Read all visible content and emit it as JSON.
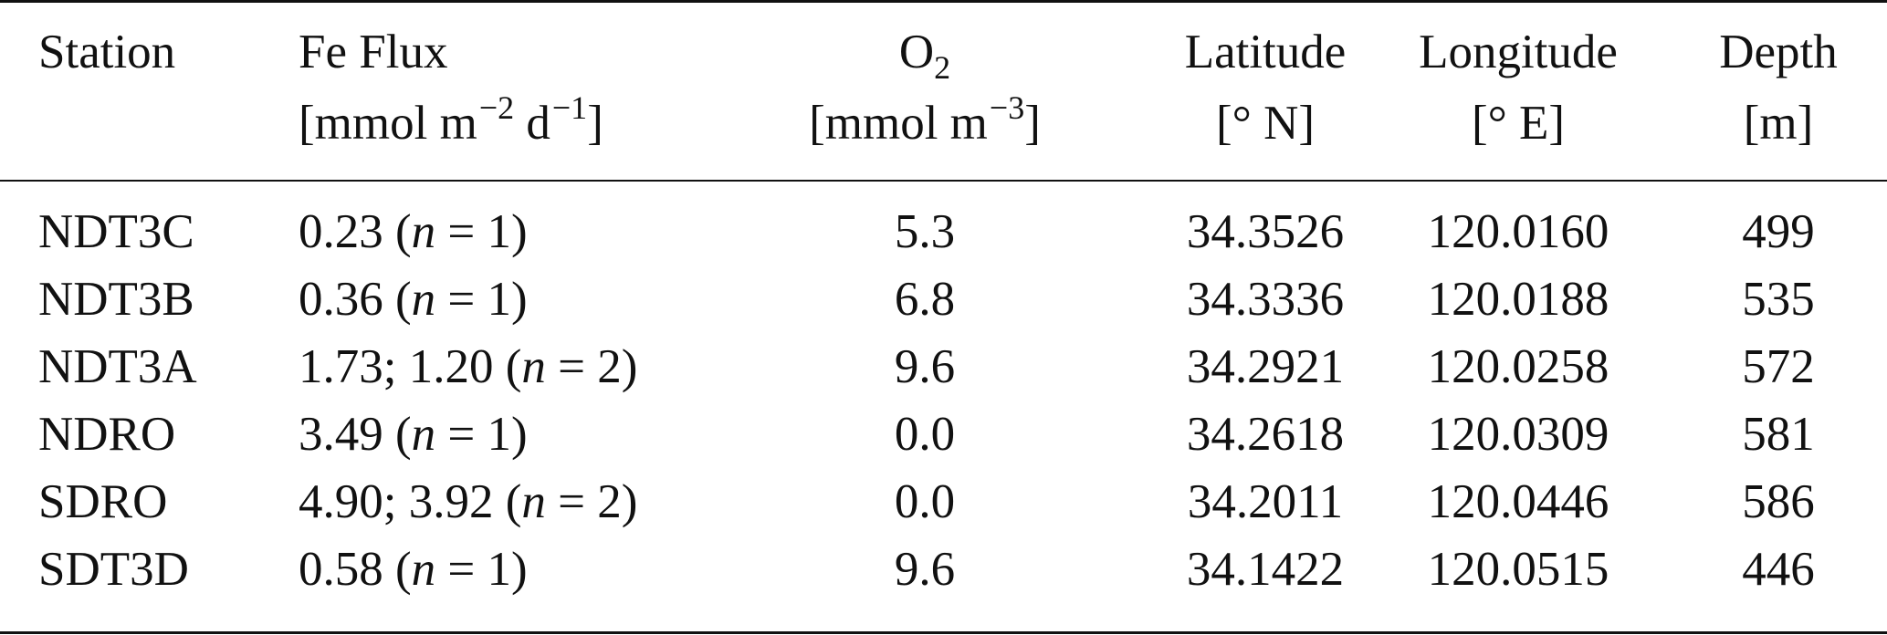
{
  "table": {
    "headers": {
      "station": "Station",
      "fe_flux": {
        "line1": "Fe Flux",
        "unit_prefix": "[mmol m",
        "exp_m": "−2",
        "unit_mid": " d",
        "exp_d": "−1",
        "unit_suffix": "]"
      },
      "o2": {
        "symbol": "O",
        "subscript": "2",
        "unit_prefix": "[mmol m",
        "exp_m": "−3",
        "unit_suffix": "]"
      },
      "latitude": {
        "line1": "Latitude",
        "line2": "[° N]"
      },
      "longitude": {
        "line1": "Longitude",
        "line2": "[° E]"
      },
      "depth": {
        "line1": "Depth",
        "line2": "[m]"
      }
    },
    "rows": [
      {
        "station": "NDT3C",
        "flux_value": "0.23",
        "n_label": "n",
        "n_value": "= 1)",
        "o2": "5.3",
        "latitude": "34.3526",
        "longitude": "120.0160",
        "depth": "499"
      },
      {
        "station": "NDT3B",
        "flux_value": "0.36",
        "n_label": "n",
        "n_value": "= 1)",
        "o2": "6.8",
        "latitude": "34.3336",
        "longitude": "120.0188",
        "depth": "535"
      },
      {
        "station": "NDT3A",
        "flux_value": "1.73; 1.20",
        "n_label": "n",
        "n_value": "= 2)",
        "o2": "9.6",
        "latitude": "34.2921",
        "longitude": "120.0258",
        "depth": "572"
      },
      {
        "station": "NDRO",
        "flux_value": "3.49",
        "n_label": "n",
        "n_value": "= 1)",
        "o2": "0.0",
        "latitude": "34.2618",
        "longitude": "120.0309",
        "depth": "581"
      },
      {
        "station": "SDRO",
        "flux_value": "4.90; 3.92",
        "n_label": "n",
        "n_value": "= 2)",
        "o2": "0.0",
        "latitude": "34.2011",
        "longitude": "120.0446",
        "depth": "586"
      },
      {
        "station": "SDT3D",
        "flux_value": "0.58",
        "n_label": "n",
        "n_value": "= 1)",
        "o2": "9.6",
        "latitude": "34.1422",
        "longitude": "120.0515",
        "depth": "446"
      }
    ]
  }
}
